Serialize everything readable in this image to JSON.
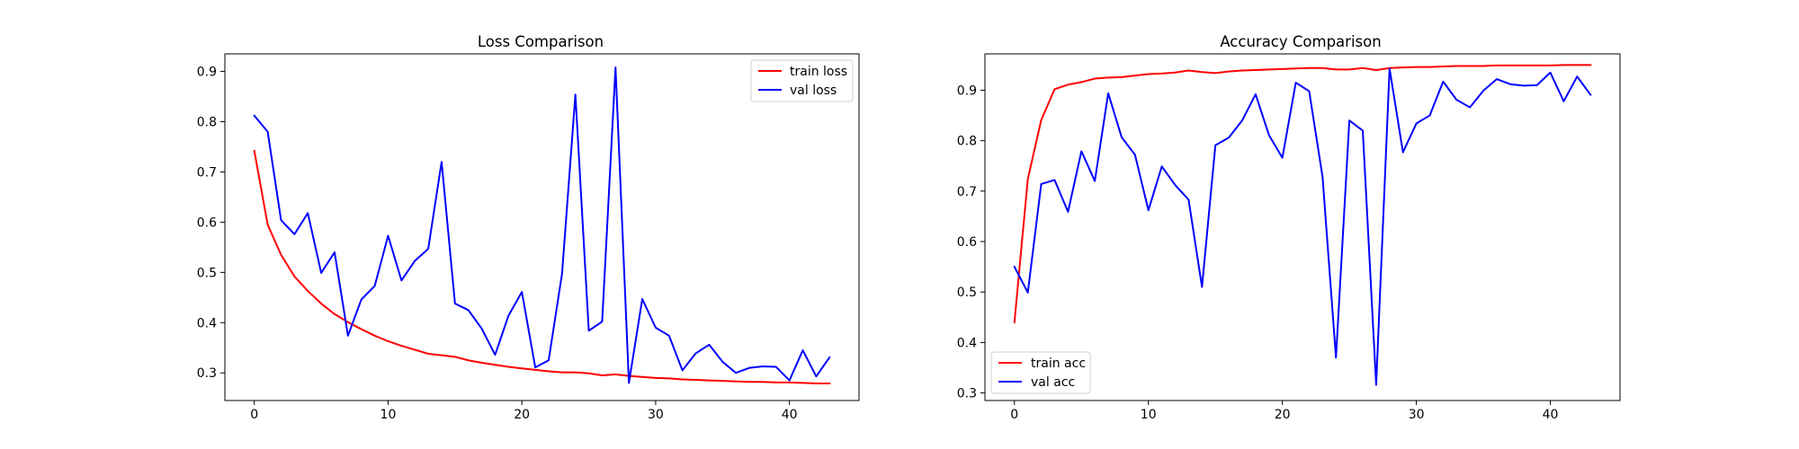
{
  "chart_data": [
    {
      "type": "line",
      "title": "Loss Comparison",
      "xlabel": "",
      "ylabel": "",
      "xlim": [
        -2.2,
        45.2
      ],
      "ylim": [
        0.245,
        0.935
      ],
      "xticks": [
        0,
        10,
        20,
        30,
        40
      ],
      "yticks": [
        0.3,
        0.4,
        0.5,
        0.6,
        0.7,
        0.8,
        0.9
      ],
      "grid": false,
      "legend_position": "upper right",
      "x": [
        0,
        1,
        2,
        3,
        4,
        5,
        6,
        7,
        8,
        9,
        10,
        11,
        12,
        13,
        14,
        15,
        16,
        17,
        18,
        19,
        20,
        21,
        22,
        23,
        24,
        25,
        26,
        27,
        28,
        29,
        30,
        31,
        32,
        33,
        34,
        35,
        36,
        37,
        38,
        39,
        40,
        41,
        42,
        43
      ],
      "series": [
        {
          "name": "train loss",
          "color": "#ff0000",
          "values": [
            0.742,
            0.595,
            0.535,
            0.492,
            0.463,
            0.438,
            0.417,
            0.401,
            0.387,
            0.374,
            0.363,
            0.354,
            0.346,
            0.338,
            0.335,
            0.332,
            0.325,
            0.32,
            0.316,
            0.312,
            0.309,
            0.306,
            0.303,
            0.301,
            0.301,
            0.299,
            0.295,
            0.297,
            0.294,
            0.292,
            0.29,
            0.289,
            0.287,
            0.286,
            0.285,
            0.284,
            0.283,
            0.282,
            0.282,
            0.281,
            0.281,
            0.28,
            0.279,
            0.279
          ]
        },
        {
          "name": "val loss",
          "color": "#0000ff",
          "values": [
            0.812,
            0.78,
            0.604,
            0.576,
            0.618,
            0.499,
            0.54,
            0.374,
            0.446,
            0.473,
            0.573,
            0.484,
            0.523,
            0.547,
            0.72,
            0.438,
            0.425,
            0.388,
            0.336,
            0.414,
            0.461,
            0.311,
            0.325,
            0.497,
            0.854,
            0.384,
            0.402,
            0.908,
            0.28,
            0.447,
            0.39,
            0.374,
            0.305,
            0.339,
            0.356,
            0.322,
            0.3,
            0.31,
            0.313,
            0.312,
            0.285,
            0.345,
            0.293,
            0.331
          ]
        }
      ]
    },
    {
      "type": "line",
      "title": "Accuracy Comparison",
      "xlabel": "",
      "ylabel": "",
      "xlim": [
        -2.2,
        45.2
      ],
      "ylim": [
        0.285,
        0.972
      ],
      "xticks": [
        0,
        10,
        20,
        30,
        40
      ],
      "yticks": [
        0.3,
        0.4,
        0.5,
        0.6,
        0.7,
        0.8,
        0.9
      ],
      "grid": false,
      "legend_position": "lower left",
      "x": [
        0,
        1,
        2,
        3,
        4,
        5,
        6,
        7,
        8,
        9,
        10,
        11,
        12,
        13,
        14,
        15,
        16,
        17,
        18,
        19,
        20,
        21,
        22,
        23,
        24,
        25,
        26,
        27,
        28,
        29,
        30,
        31,
        32,
        33,
        34,
        35,
        36,
        37,
        38,
        39,
        40,
        41,
        42,
        43
      ],
      "series": [
        {
          "name": "train acc",
          "color": "#ff0000",
          "values": [
            0.44,
            0.724,
            0.841,
            0.902,
            0.911,
            0.916,
            0.923,
            0.925,
            0.926,
            0.929,
            0.932,
            0.933,
            0.935,
            0.939,
            0.936,
            0.934,
            0.937,
            0.939,
            0.94,
            0.941,
            0.942,
            0.943,
            0.944,
            0.944,
            0.941,
            0.941,
            0.944,
            0.94,
            0.944,
            0.945,
            0.946,
            0.946,
            0.947,
            0.948,
            0.948,
            0.948,
            0.949,
            0.949,
            0.949,
            0.949,
            0.949,
            0.95,
            0.95,
            0.95
          ]
        },
        {
          "name": "val acc",
          "color": "#0000ff",
          "values": [
            0.55,
            0.499,
            0.714,
            0.722,
            0.659,
            0.779,
            0.72,
            0.894,
            0.807,
            0.772,
            0.662,
            0.749,
            0.712,
            0.683,
            0.51,
            0.791,
            0.806,
            0.84,
            0.892,
            0.811,
            0.766,
            0.915,
            0.898,
            0.728,
            0.37,
            0.84,
            0.82,
            0.316,
            0.943,
            0.777,
            0.834,
            0.85,
            0.917,
            0.881,
            0.866,
            0.899,
            0.922,
            0.912,
            0.909,
            0.91,
            0.935,
            0.878,
            0.927,
            0.891
          ]
        }
      ]
    }
  ]
}
